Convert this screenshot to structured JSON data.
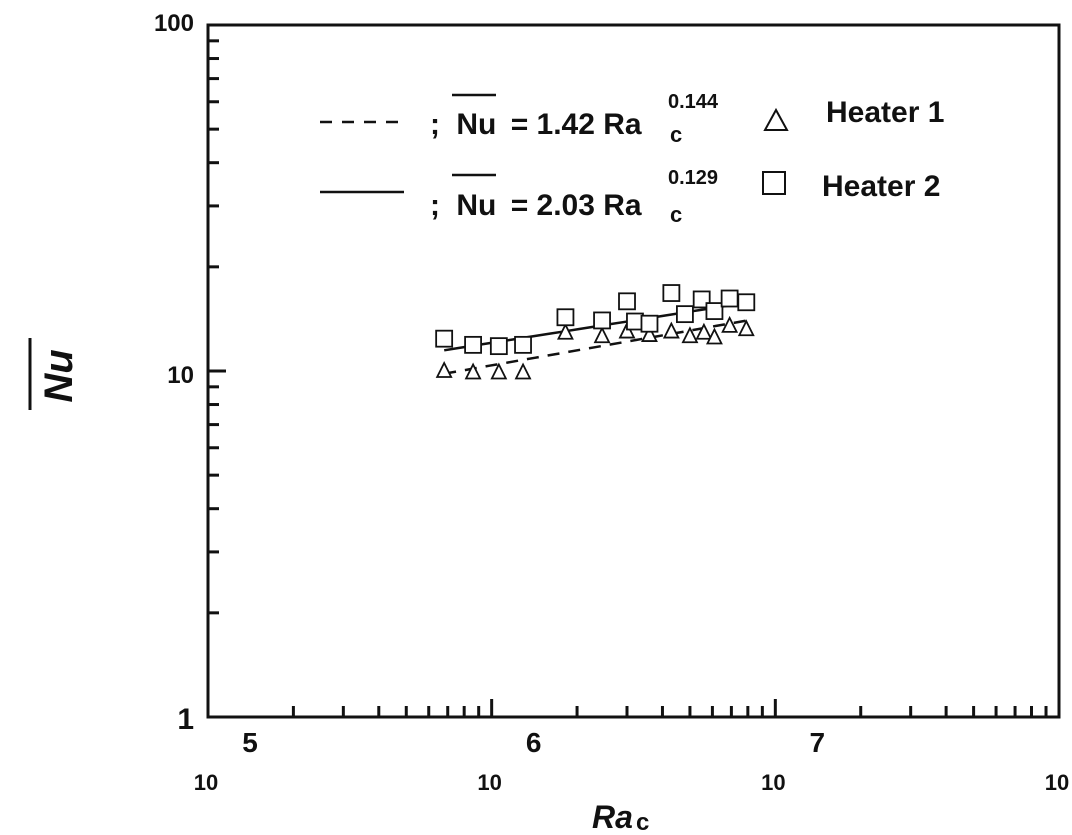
{
  "chart_data": {
    "type": "scatter",
    "xscale": "log",
    "yscale": "log",
    "xlim": [
      100000,
      100000000
    ],
    "ylim": [
      1,
      100
    ],
    "xlabel": "Ra",
    "xlabel_sub": "c",
    "ylabel": "Nu",
    "x_ticks": [
      {
        "value": 100000,
        "base": "10",
        "exp": "5"
      },
      {
        "value": 1000000,
        "base": "10",
        "exp": "6"
      },
      {
        "value": 10000000,
        "base": "10",
        "exp": "7"
      },
      {
        "value": 100000000,
        "base": "10",
        "exp": ""
      }
    ],
    "y_ticks": [
      {
        "value": 1,
        "label": "1"
      },
      {
        "value": 10,
        "label": "10"
      },
      {
        "value": 100,
        "label": "100"
      }
    ],
    "legend_position": "top-left",
    "fits": [
      {
        "style": "dashed",
        "prefix": ";",
        "lhs": "Nu",
        "rhs": "= 1.42 Ra",
        "sub": "c",
        "exp": "0.144",
        "coef": 1.42,
        "power": 0.144,
        "x_range": [
          680000,
          7900000
        ]
      },
      {
        "style": "solid",
        "prefix": ";",
        "lhs": "Nu",
        "rhs": "= 2.03 Ra",
        "sub": "c",
        "exp": "0.129",
        "coef": 2.03,
        "power": 0.129,
        "x_range": [
          680000,
          7900000
        ]
      }
    ],
    "series": [
      {
        "name": "Heater 1",
        "marker": "triangle",
        "points": [
          [
            680000,
            10.0
          ],
          [
            860000,
            9.9
          ],
          [
            1060000,
            9.9
          ],
          [
            1290000,
            9.9
          ],
          [
            1820000,
            12.9
          ],
          [
            2450000,
            12.6
          ],
          [
            3000000,
            13.0
          ],
          [
            3600000,
            12.7
          ],
          [
            4300000,
            13.0
          ],
          [
            5000000,
            12.6
          ],
          [
            5600000,
            12.9
          ],
          [
            6100000,
            12.5
          ],
          [
            6900000,
            13.5
          ],
          [
            7900000,
            13.2
          ]
        ]
      },
      {
        "name": "Heater 2",
        "marker": "square",
        "points": [
          [
            680000,
            12.4
          ],
          [
            860000,
            11.9
          ],
          [
            1060000,
            11.8
          ],
          [
            1290000,
            11.9
          ],
          [
            1820000,
            14.3
          ],
          [
            2450000,
            14.0
          ],
          [
            3000000,
            15.9
          ],
          [
            3200000,
            13.9
          ],
          [
            3600000,
            13.7
          ],
          [
            4300000,
            16.8
          ],
          [
            4800000,
            14.6
          ],
          [
            5500000,
            16.1
          ],
          [
            6100000,
            14.9
          ],
          [
            6900000,
            16.2
          ],
          [
            7900000,
            15.8
          ]
        ]
      }
    ]
  }
}
